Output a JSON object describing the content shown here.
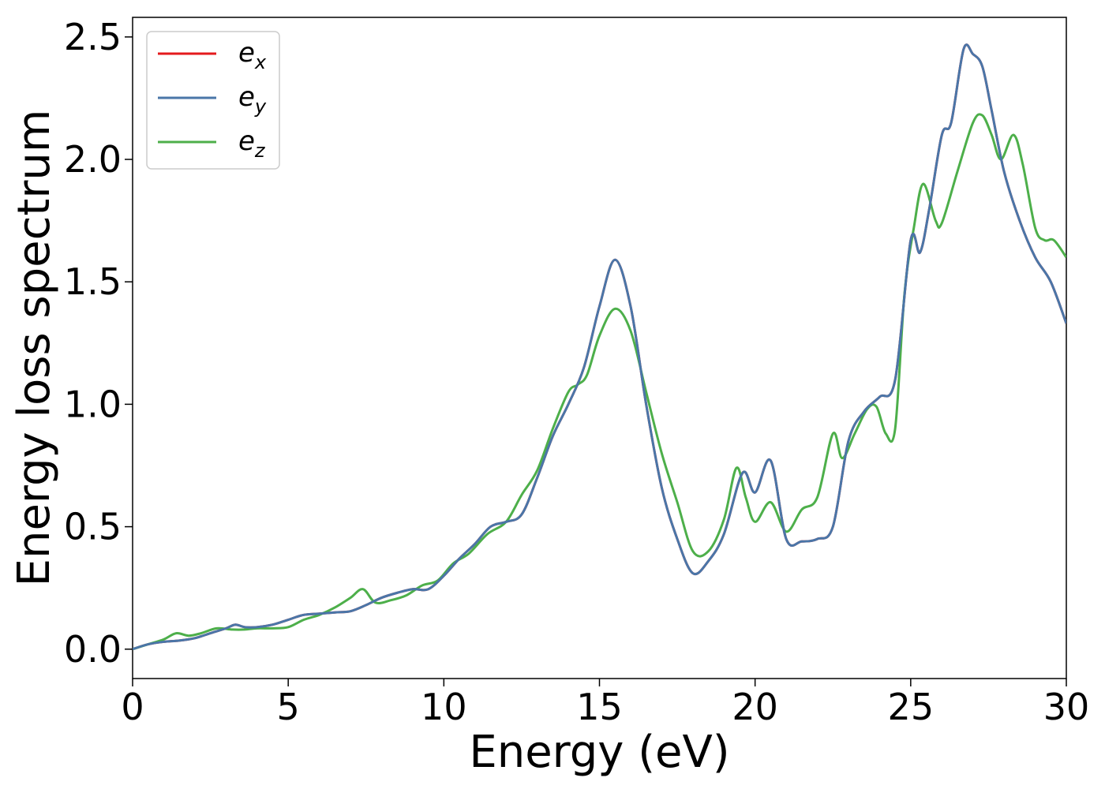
{
  "chart_data": {
    "type": "line",
    "xlabel": "Energy (eV)",
    "ylabel": "Energy loss spectrum",
    "xlim": [
      0,
      30
    ],
    "ylim": [
      -0.12,
      2.58
    ],
    "xticks": [
      0,
      5,
      10,
      15,
      20,
      25,
      30
    ],
    "yticks": [
      0.0,
      0.5,
      1.0,
      1.5,
      2.0,
      2.5
    ],
    "xtick_labels": [
      "0",
      "5",
      "10",
      "15",
      "20",
      "25",
      "30"
    ],
    "ytick_labels": [
      "0.0",
      "0.5",
      "1.0",
      "1.5",
      "2.0",
      "2.5"
    ],
    "grid": false,
    "legend_position": "upper-left",
    "series": [
      {
        "name": "e_x",
        "legend_main": "e",
        "legend_sub": "x",
        "color": "#e41a1c",
        "x": [
          0,
          0.5,
          1,
          1.5,
          2,
          2.5,
          3,
          3.3,
          3.6,
          4,
          4.5,
          5,
          5.5,
          6,
          6.5,
          7,
          7.5,
          8,
          8.5,
          9,
          9.5,
          10,
          10.5,
          11,
          11.5,
          12,
          12.5,
          13,
          13.5,
          14,
          14.5,
          15,
          15.5,
          16,
          16.5,
          17,
          17.5,
          18,
          18.5,
          19,
          19.6,
          20,
          20.5,
          21,
          21.5,
          22,
          22.5,
          23,
          23.5,
          24,
          24.5,
          25,
          25.3,
          25.6,
          26,
          26.3,
          26.7,
          27,
          27.3,
          27.6,
          28,
          28.5,
          29,
          29.5,
          30
        ],
        "y": [
          0,
          0.02,
          0.03,
          0.035,
          0.045,
          0.065,
          0.085,
          0.1,
          0.09,
          0.09,
          0.1,
          0.12,
          0.14,
          0.145,
          0.15,
          0.155,
          0.18,
          0.21,
          0.23,
          0.245,
          0.245,
          0.3,
          0.37,
          0.43,
          0.5,
          0.52,
          0.55,
          0.7,
          0.87,
          1.0,
          1.15,
          1.4,
          1.59,
          1.4,
          1.0,
          0.66,
          0.45,
          0.31,
          0.36,
          0.47,
          0.72,
          0.64,
          0.77,
          0.45,
          0.44,
          0.45,
          0.5,
          0.85,
          0.97,
          1.03,
          1.1,
          1.67,
          1.62,
          1.8,
          2.1,
          2.15,
          2.45,
          2.43,
          2.38,
          2.2,
          1.95,
          1.75,
          1.6,
          1.5,
          1.33
        ]
      },
      {
        "name": "e_y",
        "legend_main": "e",
        "legend_sub": "y",
        "color": "#4a76a8",
        "x": [
          0,
          0.5,
          1,
          1.5,
          2,
          2.5,
          3,
          3.3,
          3.6,
          4,
          4.5,
          5,
          5.5,
          6,
          6.5,
          7,
          7.5,
          8,
          8.5,
          9,
          9.5,
          10,
          10.5,
          11,
          11.5,
          12,
          12.5,
          13,
          13.5,
          14,
          14.5,
          15,
          15.5,
          16,
          16.5,
          17,
          17.5,
          18,
          18.5,
          19,
          19.6,
          20,
          20.5,
          21,
          21.5,
          22,
          22.5,
          23,
          23.5,
          24,
          24.5,
          25,
          25.3,
          25.6,
          26,
          26.3,
          26.7,
          27,
          27.3,
          27.6,
          28,
          28.5,
          29,
          29.5,
          30
        ],
        "y": [
          0,
          0.02,
          0.03,
          0.035,
          0.045,
          0.065,
          0.085,
          0.1,
          0.09,
          0.09,
          0.1,
          0.12,
          0.14,
          0.145,
          0.15,
          0.155,
          0.18,
          0.21,
          0.23,
          0.245,
          0.245,
          0.3,
          0.37,
          0.43,
          0.5,
          0.52,
          0.55,
          0.7,
          0.87,
          1.0,
          1.15,
          1.4,
          1.59,
          1.4,
          1.0,
          0.66,
          0.45,
          0.31,
          0.36,
          0.47,
          0.72,
          0.64,
          0.77,
          0.45,
          0.44,
          0.45,
          0.5,
          0.85,
          0.97,
          1.03,
          1.1,
          1.67,
          1.62,
          1.8,
          2.1,
          2.15,
          2.45,
          2.43,
          2.38,
          2.2,
          1.95,
          1.75,
          1.6,
          1.5,
          1.33
        ]
      },
      {
        "name": "e_z",
        "legend_main": "e",
        "legend_sub": "z",
        "color": "#4daf4a",
        "x": [
          0,
          0.5,
          1,
          1.4,
          1.8,
          2.2,
          2.7,
          3.2,
          3.6,
          4,
          4.5,
          5,
          5.5,
          6,
          6.5,
          7,
          7.4,
          7.8,
          8.3,
          8.8,
          9.3,
          9.8,
          10.3,
          10.8,
          11.4,
          12,
          12.5,
          13,
          13.5,
          14,
          14.3,
          14.6,
          15,
          15.5,
          16,
          16.5,
          17,
          17.5,
          18,
          18.5,
          19,
          19.4,
          19.7,
          20,
          20.5,
          21,
          21.5,
          22,
          22.5,
          22.8,
          23.2,
          23.6,
          23.9,
          24.2,
          24.5,
          24.8,
          25.1,
          25.4,
          25.8,
          26,
          26.5,
          27,
          27.3,
          27.6,
          27.9,
          28.3,
          28.6,
          29,
          29.3,
          29.6,
          30
        ],
        "y": [
          0,
          0.02,
          0.04,
          0.065,
          0.055,
          0.065,
          0.085,
          0.08,
          0.08,
          0.085,
          0.085,
          0.09,
          0.12,
          0.14,
          0.17,
          0.21,
          0.245,
          0.19,
          0.2,
          0.22,
          0.26,
          0.28,
          0.35,
          0.39,
          0.47,
          0.52,
          0.63,
          0.73,
          0.9,
          1.05,
          1.08,
          1.12,
          1.28,
          1.39,
          1.3,
          1.05,
          0.8,
          0.6,
          0.4,
          0.4,
          0.53,
          0.74,
          0.62,
          0.52,
          0.6,
          0.48,
          0.57,
          0.62,
          0.88,
          0.78,
          0.88,
          0.98,
          0.99,
          0.88,
          0.9,
          1.45,
          1.72,
          1.9,
          1.75,
          1.74,
          1.95,
          2.15,
          2.18,
          2.1,
          2.0,
          2.1,
          1.98,
          1.72,
          1.67,
          1.67,
          1.6
        ]
      }
    ]
  }
}
